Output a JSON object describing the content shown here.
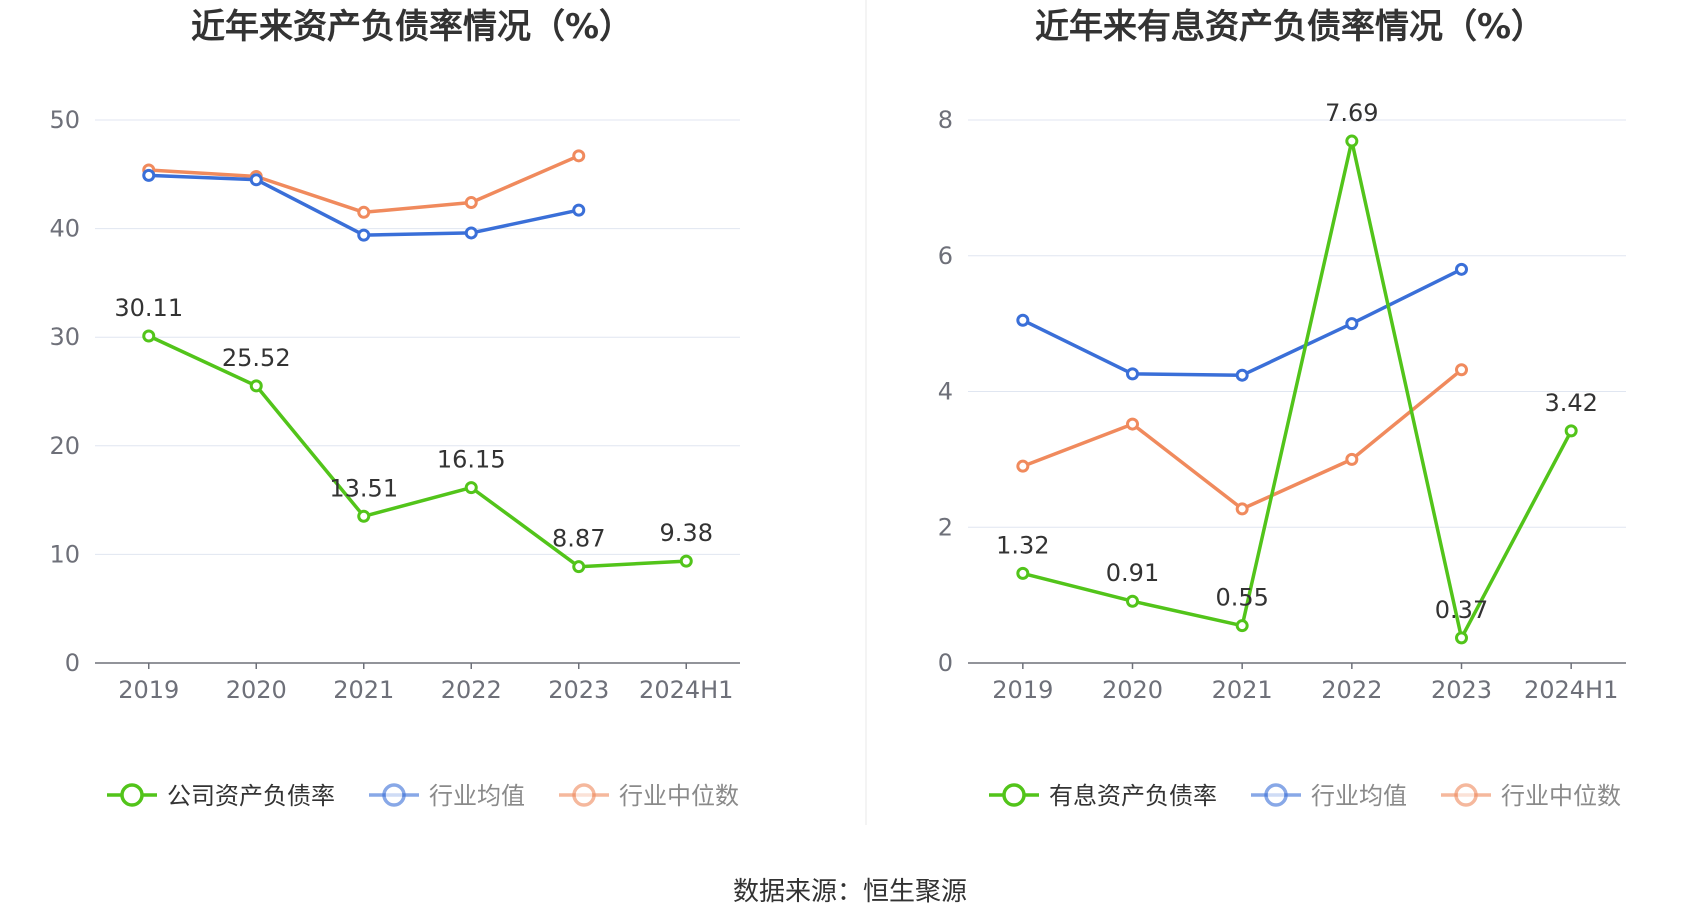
{
  "source_text": "数据来源：恒生聚源",
  "chart_data": [
    {
      "type": "line",
      "title": "近年来资产负债率情况（%）",
      "categories": [
        "2019",
        "2020",
        "2021",
        "2022",
        "2023",
        "2024H1"
      ],
      "ylim": [
        0,
        50
      ],
      "yticks": [
        0,
        10,
        20,
        30,
        40,
        50
      ],
      "grid": true,
      "legend_position": "bottom",
      "series": [
        {
          "name": "公司资产负债率",
          "color": "#52c41a",
          "values": [
            30.11,
            25.52,
            13.51,
            16.15,
            8.87,
            9.38
          ],
          "labels": [
            "30.11",
            "25.52",
            "13.51",
            "16.15",
            "8.87",
            "9.38"
          ],
          "show_labels": true
        },
        {
          "name": "行业均值",
          "color": "#3a6fd8",
          "values": [
            44.9,
            44.5,
            39.4,
            39.6,
            41.7,
            null
          ],
          "show_labels": false
        },
        {
          "name": "行业中位数",
          "color": "#f08a5d",
          "values": [
            45.4,
            44.8,
            41.5,
            42.4,
            46.7,
            null
          ],
          "show_labels": false
        }
      ]
    },
    {
      "type": "line",
      "title": "近年来有息资产负债率情况（%）",
      "categories": [
        "2019",
        "2020",
        "2021",
        "2022",
        "2023",
        "2024H1"
      ],
      "ylim": [
        0,
        8
      ],
      "yticks": [
        0,
        2,
        4,
        6,
        8
      ],
      "grid": true,
      "legend_position": "bottom",
      "series": [
        {
          "name": "有息资产负债率",
          "color": "#52c41a",
          "values": [
            1.32,
            0.91,
            0.55,
            7.69,
            0.37,
            3.42
          ],
          "labels": [
            "1.32",
            "0.91",
            "0.55",
            "7.69",
            "0.37",
            "3.42"
          ],
          "show_labels": true
        },
        {
          "name": "行业均值",
          "color": "#3a6fd8",
          "values": [
            5.05,
            4.26,
            4.24,
            5.0,
            5.8,
            null
          ],
          "show_labels": false
        },
        {
          "name": "行业中位数",
          "color": "#f08a5d",
          "values": [
            2.9,
            3.52,
            2.27,
            3.0,
            4.32,
            null
          ],
          "show_labels": false
        }
      ]
    }
  ]
}
